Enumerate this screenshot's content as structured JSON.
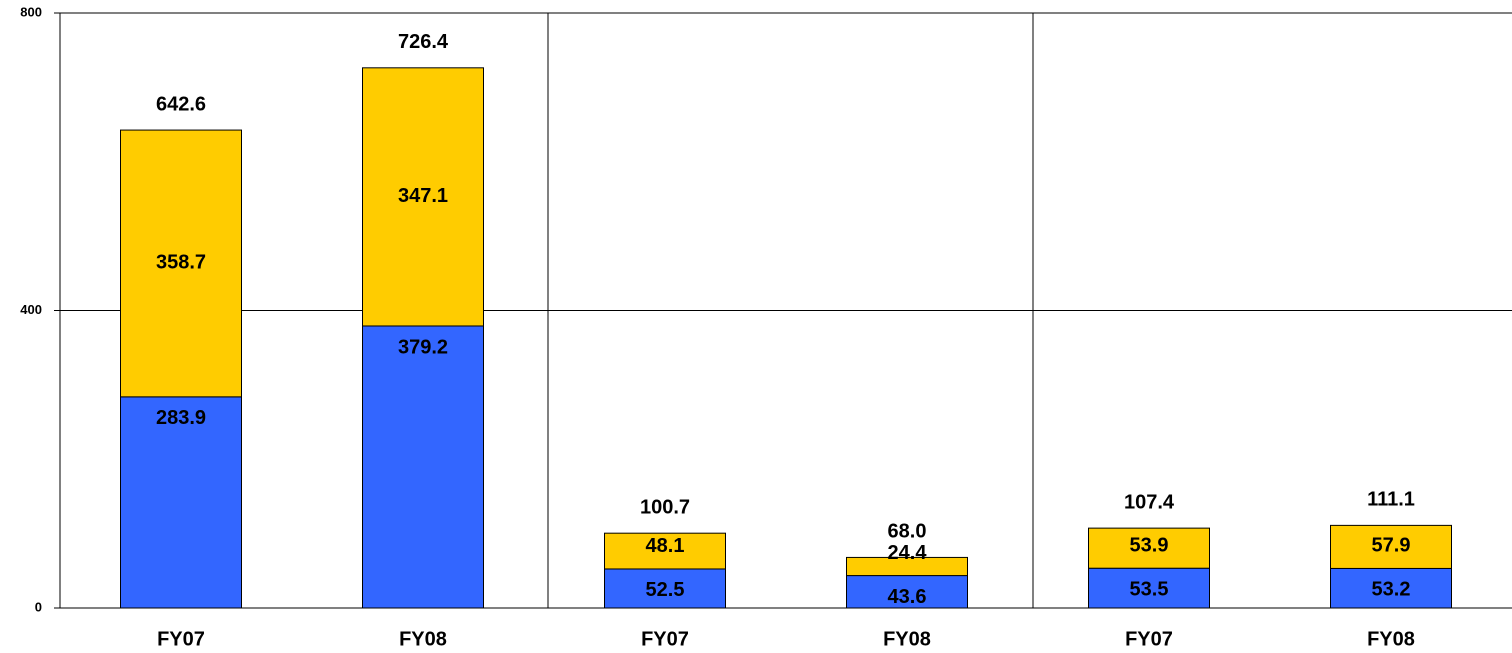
{
  "chart_data": {
    "type": "stacked_bar",
    "categories": [
      "FY07",
      "FY08",
      "FY07",
      "FY08",
      "FY07",
      "FY08"
    ],
    "series": [
      {
        "color": "#3366ff",
        "values": [
          283.9,
          379.2,
          52.5,
          43.6,
          53.5,
          53.2
        ]
      },
      {
        "color": "#ffcc00",
        "values": [
          358.7,
          347.1,
          48.1,
          24.4,
          53.9,
          57.9
        ]
      }
    ],
    "totals": [
      642.6,
      726.4,
      100.7,
      68.0,
      107.4,
      111.1
    ],
    "total_labels": [
      "642.6",
      "726.4",
      "100.7",
      "68.0",
      "107.4",
      "111.1"
    ],
    "ylim": [
      0,
      800
    ],
    "yticks": [
      0,
      400,
      800
    ],
    "grid": true
  }
}
